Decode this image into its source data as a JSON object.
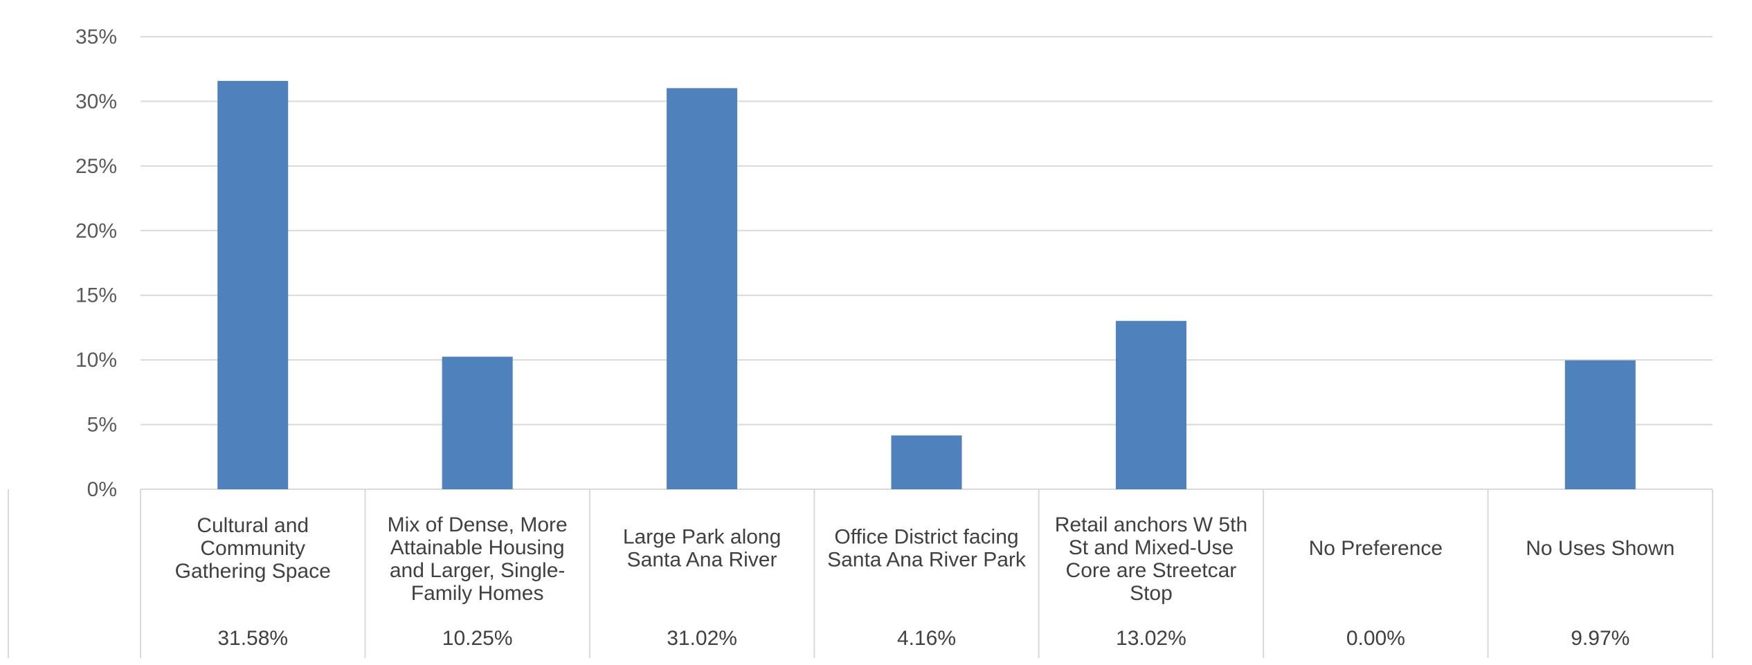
{
  "chart_data": {
    "type": "bar",
    "title": "",
    "xlabel": "",
    "ylabel": "",
    "ylim": [
      0,
      35
    ],
    "y_tick_step": 5,
    "y_tick_format": "percent",
    "grid": true,
    "legend": "none",
    "bar_color": "#4f81bd",
    "categories": [
      "Cultural and Community Gathering Space",
      "Mix of Dense, More Attainable Housing and Larger, Single-Family Homes",
      "Large Park along Santa Ana River",
      "Office District facing Santa Ana River Park",
      "Retail anchors W 5th St and Mixed-Use Core are Streetcar Stop",
      "No Preference",
      "No Uses Shown"
    ],
    "category_label_lines": [
      [
        "Cultural and",
        "Community",
        "Gathering Space"
      ],
      [
        "Mix of Dense, More",
        "Attainable Housing",
        "and Larger, Single-",
        "Family Homes"
      ],
      [
        "Large Park along",
        "Santa Ana River"
      ],
      [
        "Office District facing",
        "Santa Ana River Park"
      ],
      [
        "Retail anchors W 5th",
        "St and Mixed-Use",
        "Core are Streetcar",
        "Stop"
      ],
      [
        "No Preference"
      ],
      [
        "No Uses Shown"
      ]
    ],
    "values": [
      31.58,
      10.25,
      31.02,
      4.16,
      13.02,
      0.0,
      9.97
    ],
    "data_labels": [
      "31.58%",
      "10.25%",
      "31.02%",
      "4.16%",
      "13.02%",
      "0.00%",
      "9.97%"
    ]
  }
}
